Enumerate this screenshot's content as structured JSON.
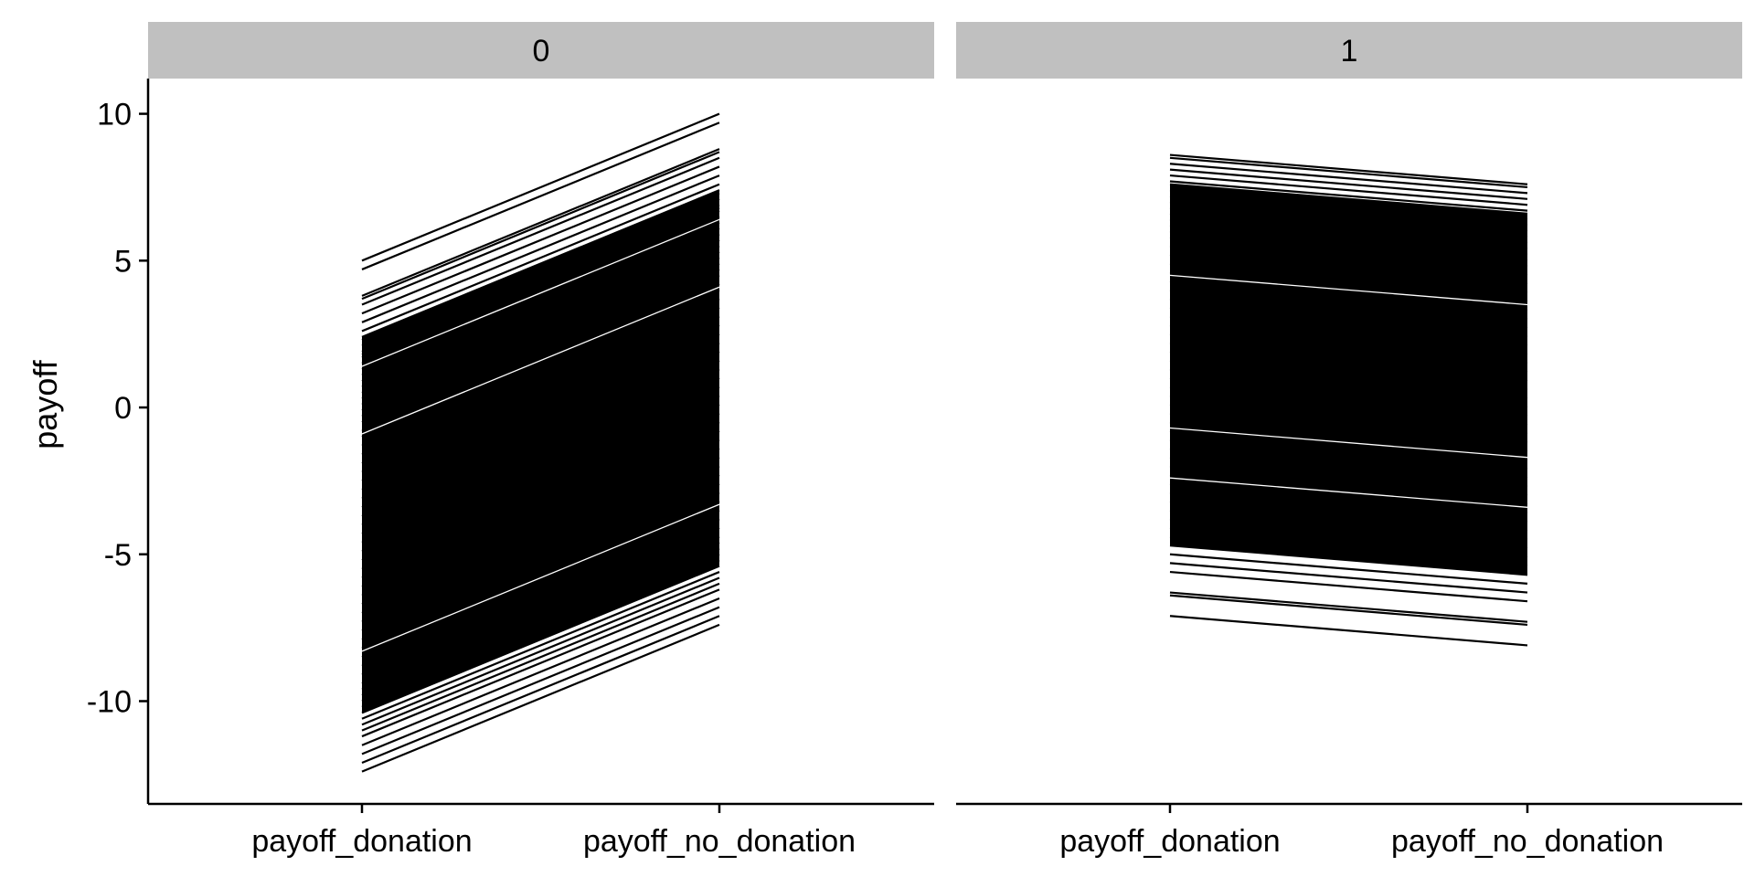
{
  "chart_data": {
    "type": "line",
    "ylabel": "payoff",
    "xlabel": "",
    "ylim": [
      -13.5,
      11.2
    ],
    "yticks": [
      10,
      5,
      0,
      -5,
      -10
    ],
    "ytick_labels": [
      "10",
      "5",
      "0",
      "-5",
      "-10"
    ],
    "categories": [
      "payoff_donation",
      "payoff_no_donation"
    ],
    "grid": false,
    "legend": "none",
    "line_color": "#000000",
    "strip_color": "#c0c0c0",
    "panels": [
      {
        "strip_label": "0",
        "series_summary": "One line per observation from payoff_donation to payoff_no_donation; each line rises by 5.",
        "segments": [
          [
            5.0,
            10.0
          ],
          [
            4.7,
            9.7
          ],
          [
            3.8,
            8.8
          ],
          [
            3.7,
            8.7
          ],
          [
            3.5,
            8.5
          ],
          [
            3.2,
            8.2
          ],
          [
            2.9,
            7.9
          ],
          [
            2.6,
            7.6
          ],
          [
            2.4,
            7.4
          ],
          [
            2.3,
            7.3
          ],
          [
            2.1,
            7.1
          ],
          [
            1.9,
            6.9
          ],
          [
            1.8,
            6.8
          ],
          [
            1.7,
            6.7
          ],
          [
            1.5,
            6.5
          ],
          [
            1.3,
            6.3
          ],
          [
            1.1,
            6.1
          ],
          [
            0.9,
            5.9
          ],
          [
            0.7,
            5.7
          ],
          [
            0.5,
            5.5
          ],
          [
            0.3,
            5.3
          ],
          [
            0.1,
            5.1
          ],
          [
            -0.1,
            4.9
          ],
          [
            -0.3,
            4.7
          ],
          [
            -0.5,
            4.5
          ],
          [
            -0.8,
            4.2
          ],
          [
            -1.0,
            4.0
          ],
          [
            -1.3,
            3.7
          ],
          [
            -1.6,
            3.4
          ],
          [
            -1.9,
            3.1
          ],
          [
            -2.2,
            2.8
          ],
          [
            -2.5,
            2.5
          ],
          [
            -2.8,
            2.2
          ],
          [
            -3.1,
            1.9
          ],
          [
            -3.4,
            1.6
          ],
          [
            -3.7,
            1.3
          ],
          [
            -4.0,
            1.0
          ],
          [
            -4.3,
            0.7
          ],
          [
            -4.6,
            0.4
          ],
          [
            -4.9,
            0.1
          ],
          [
            -5.2,
            -0.2
          ],
          [
            -5.5,
            -0.5
          ],
          [
            -5.8,
            -0.8
          ],
          [
            -6.1,
            -1.1
          ],
          [
            -6.4,
            -1.4
          ],
          [
            -6.7,
            -1.7
          ],
          [
            -7.0,
            -2.0
          ],
          [
            -7.3,
            -2.3
          ],
          [
            -7.6,
            -2.6
          ],
          [
            -7.9,
            -2.9
          ],
          [
            -8.2,
            -3.2
          ],
          [
            -8.5,
            -3.5
          ],
          [
            -8.8,
            -3.8
          ],
          [
            -9.1,
            -4.1
          ],
          [
            -9.4,
            -4.4
          ],
          [
            -9.6,
            -4.6
          ],
          [
            -9.8,
            -4.8
          ],
          [
            -10.0,
            -5.0
          ],
          [
            -10.2,
            -5.2
          ],
          [
            -10.4,
            -5.4
          ],
          [
            -10.6,
            -5.6
          ],
          [
            -10.8,
            -5.8
          ],
          [
            -11.0,
            -6.0
          ],
          [
            -11.2,
            -6.2
          ],
          [
            -11.5,
            -6.5
          ],
          [
            -11.8,
            -6.8
          ],
          [
            -12.1,
            -7.1
          ],
          [
            -12.4,
            -7.4
          ]
        ]
      },
      {
        "strip_label": "1",
        "series_summary": "One line per observation from payoff_donation to payoff_no_donation; each line falls by 1.",
        "segments": [
          [
            8.6,
            7.6
          ],
          [
            8.5,
            7.5
          ],
          [
            8.3,
            7.3
          ],
          [
            8.1,
            7.1
          ],
          [
            7.9,
            6.9
          ],
          [
            7.7,
            6.7
          ],
          [
            7.6,
            6.6
          ],
          [
            7.4,
            6.4
          ],
          [
            7.2,
            6.2
          ],
          [
            7.0,
            6.0
          ],
          [
            6.8,
            5.8
          ],
          [
            6.6,
            5.6
          ],
          [
            6.4,
            5.4
          ],
          [
            6.2,
            5.2
          ],
          [
            6.0,
            5.0
          ],
          [
            5.8,
            4.8
          ],
          [
            5.5,
            4.5
          ],
          [
            5.2,
            4.2
          ],
          [
            4.9,
            3.9
          ],
          [
            4.6,
            3.6
          ],
          [
            4.3,
            3.3
          ],
          [
            4.0,
            3.0
          ],
          [
            3.7,
            2.7
          ],
          [
            3.4,
            2.4
          ],
          [
            3.1,
            2.1
          ],
          [
            2.8,
            1.8
          ],
          [
            2.5,
            1.5
          ],
          [
            2.2,
            1.2
          ],
          [
            1.9,
            0.9
          ],
          [
            1.6,
            0.6
          ],
          [
            1.3,
            0.3
          ],
          [
            1.0,
            0.0
          ],
          [
            0.7,
            -0.3
          ],
          [
            0.4,
            -0.6
          ],
          [
            0.1,
            -0.9
          ],
          [
            -0.2,
            -1.2
          ],
          [
            -0.5,
            -1.5
          ],
          [
            -0.8,
            -1.8
          ],
          [
            -1.1,
            -2.1
          ],
          [
            -1.4,
            -2.4
          ],
          [
            -1.7,
            -2.7
          ],
          [
            -2.0,
            -3.0
          ],
          [
            -2.3,
            -3.3
          ],
          [
            -2.6,
            -3.6
          ],
          [
            -2.9,
            -3.9
          ],
          [
            -3.2,
            -4.2
          ],
          [
            -3.5,
            -4.5
          ],
          [
            -3.8,
            -4.8
          ],
          [
            -4.1,
            -5.1
          ],
          [
            -4.4,
            -5.4
          ],
          [
            -4.7,
            -5.7
          ],
          [
            -5.0,
            -6.0
          ],
          [
            -5.3,
            -6.3
          ],
          [
            -5.6,
            -6.6
          ],
          [
            -6.3,
            -7.3
          ],
          [
            -6.4,
            -7.4
          ],
          [
            -7.1,
            -8.1
          ]
        ]
      }
    ]
  }
}
